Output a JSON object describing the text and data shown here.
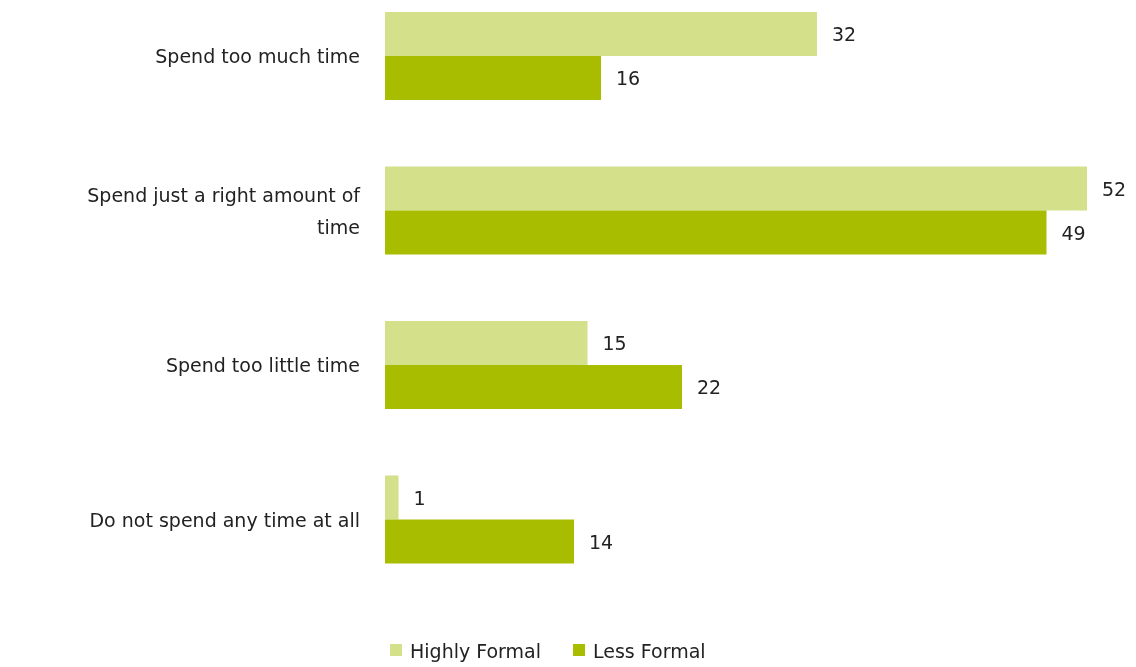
{
  "chart_data": {
    "type": "bar",
    "orientation": "horizontal",
    "categories": [
      "Spend too much time",
      "Spend just a right amount of time",
      "Spend too little time",
      "Do not spend any time at all"
    ],
    "series": [
      {
        "name": "Highly Formal",
        "color": "#d4e08a",
        "values": [
          32,
          52,
          15,
          1
        ]
      },
      {
        "name": "Less Formal",
        "color": "#a9bd00",
        "values": [
          16,
          49,
          22,
          14
        ]
      }
    ],
    "data_labels": true,
    "legend": "bottom"
  }
}
